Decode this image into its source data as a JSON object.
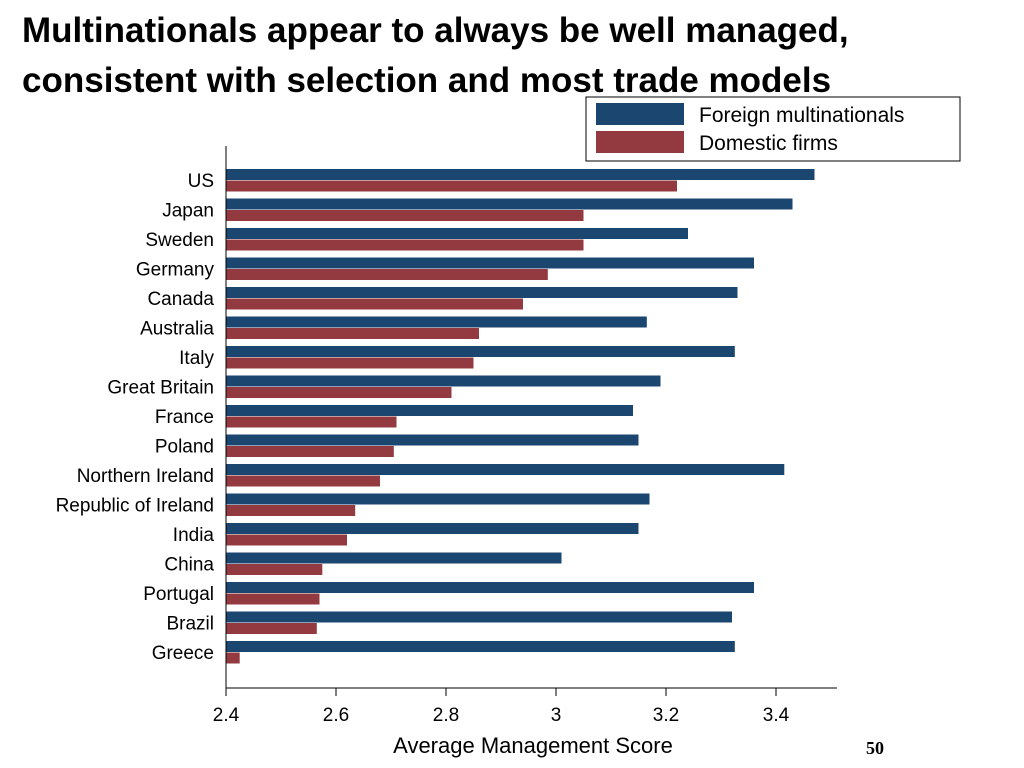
{
  "slide": {
    "title_line1": "Multinationals appear to always be well managed,",
    "title_line2": "consistent with selection and most trade models",
    "page_number": "50"
  },
  "chart_data": {
    "type": "bar",
    "orientation": "horizontal",
    "categories": [
      "US",
      "Japan",
      "Sweden",
      "Germany",
      "Canada",
      "Australia",
      "Italy",
      "Great Britain",
      "France",
      "Poland",
      "Northern Ireland",
      "Republic of Ireland",
      "India",
      "China",
      "Portugal",
      "Brazil",
      "Greece"
    ],
    "series": [
      {
        "name": "Foreign multinationals",
        "color": "#1b4670",
        "values": [
          3.47,
          3.43,
          3.24,
          3.36,
          3.33,
          3.165,
          3.325,
          3.19,
          3.14,
          3.15,
          3.415,
          3.17,
          3.15,
          3.01,
          3.36,
          3.32,
          3.325
        ]
      },
      {
        "name": "Domestic firms",
        "color": "#933a40",
        "values": [
          3.22,
          3.05,
          3.05,
          2.985,
          2.94,
          2.86,
          2.85,
          2.81,
          2.71,
          2.705,
          2.68,
          2.635,
          2.62,
          2.575,
          2.57,
          2.565,
          2.425
        ]
      }
    ],
    "xlabel": "Average Management Score",
    "ylabel": "",
    "xlim": [
      2.4,
      3.52
    ],
    "xticks": [
      2.4,
      2.6,
      2.8,
      3,
      3.2,
      3.4
    ],
    "xtick_labels": [
      "2.4",
      "2.6",
      "2.8",
      "3",
      "3.2",
      "3.4"
    ],
    "grid": false,
    "legend": "top-right"
  }
}
